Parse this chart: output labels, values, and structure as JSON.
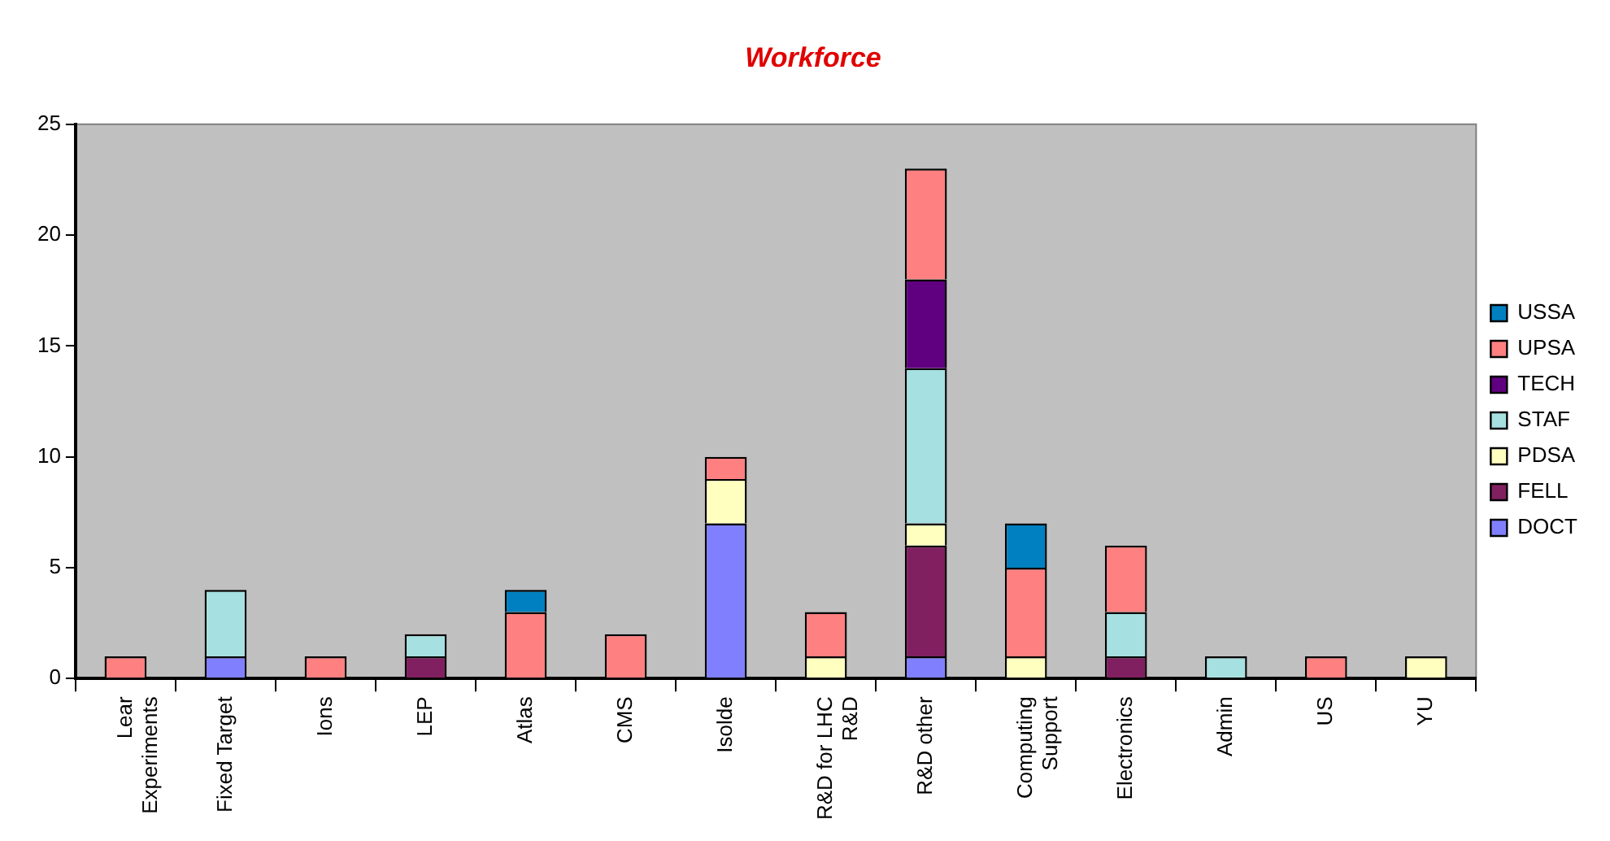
{
  "chart_data": {
    "type": "bar",
    "title": "Workforce",
    "stacked": true,
    "legend": "right",
    "grid": false,
    "categories": [
      "Lear Experiments",
      "Fixed Target",
      "Ions",
      "LEP",
      "Atlas",
      "CMS",
      "Isolde",
      "R&D for LHC R&D",
      "R&D other",
      "Computing Support",
      "Electronics",
      "Admin",
      "US",
      "YU"
    ],
    "ylim": [
      0,
      25
    ],
    "yticks": [
      0,
      5,
      10,
      15,
      20,
      25
    ],
    "series": [
      {
        "name": "DOCT",
        "color": "#8080ff",
        "values": [
          null,
          1,
          null,
          null,
          null,
          null,
          7,
          null,
          1,
          null,
          null,
          null,
          null,
          null
        ]
      },
      {
        "name": "FELL",
        "color": "#802060",
        "values": [
          null,
          null,
          null,
          1,
          null,
          null,
          null,
          null,
          5,
          null,
          1,
          null,
          null,
          null
        ]
      },
      {
        "name": "PDSA",
        "color": "#ffffc0",
        "values": [
          null,
          null,
          null,
          null,
          null,
          null,
          2,
          1,
          1,
          1,
          null,
          null,
          null,
          1
        ]
      },
      {
        "name": "STAF",
        "color": "#a6e0e0",
        "values": [
          null,
          3,
          null,
          1,
          null,
          null,
          null,
          null,
          7,
          null,
          2,
          1,
          null,
          null
        ]
      },
      {
        "name": "TECH",
        "color": "#600080",
        "values": [
          null,
          null,
          null,
          null,
          null,
          null,
          null,
          null,
          4,
          null,
          null,
          null,
          null,
          null
        ]
      },
      {
        "name": "UPSA",
        "color": "#ff8080",
        "values": [
          1,
          null,
          1,
          null,
          3,
          2,
          1,
          2,
          5,
          4,
          3,
          null,
          1,
          null
        ]
      },
      {
        "name": "USSA",
        "color": "#0080c0",
        "values": [
          null,
          null,
          null,
          null,
          1,
          null,
          null,
          null,
          null,
          2,
          null,
          null,
          null,
          null
        ]
      }
    ]
  }
}
